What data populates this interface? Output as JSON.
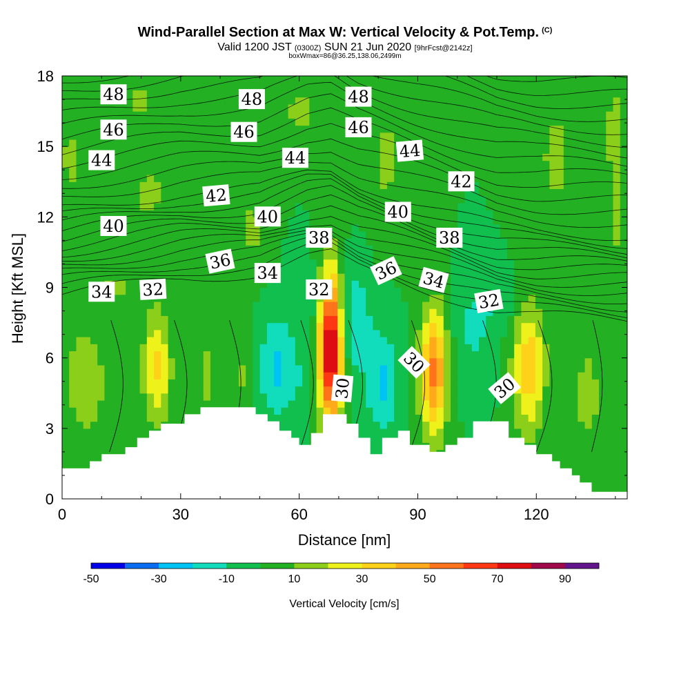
{
  "title": {
    "main": "Wind-Parallel Section at Max W: Vertical Velocity & Pot.Temp.",
    "mark": "(C)",
    "valid_prefix": "Valid 1200 JST",
    "valid_z": "(0300Z)",
    "valid_suffix": "SUN 21 Jun 2020",
    "forecast": "[9hrFcst@2142z]",
    "box_line": "boxWmax=86@36.25,138.06,2499m"
  },
  "chart_data": {
    "type": "heatmap",
    "xlabel": "Distance [nm]",
    "ylabel": "Height [Kft MSL]",
    "xlim": [
      0,
      143
    ],
    "ylim": [
      0,
      18
    ],
    "xticks": [
      0,
      30,
      60,
      90,
      120
    ],
    "yticks": [
      0,
      3,
      6,
      9,
      12,
      15,
      18
    ],
    "terrain_kft": [
      [
        0,
        1.3
      ],
      [
        7,
        1.3
      ],
      [
        7,
        1.6
      ],
      [
        10,
        1.6
      ],
      [
        10,
        1.9
      ],
      [
        16,
        1.9
      ],
      [
        16,
        2.2
      ],
      [
        19,
        2.2
      ],
      [
        19,
        2.6
      ],
      [
        22,
        2.6
      ],
      [
        22,
        2.9
      ],
      [
        25,
        2.9
      ],
      [
        25,
        3.2
      ],
      [
        31,
        3.2
      ],
      [
        31,
        3.6
      ],
      [
        35,
        3.6
      ],
      [
        35,
        3.9
      ],
      [
        49,
        3.9
      ],
      [
        49,
        3.6
      ],
      [
        52,
        3.6
      ],
      [
        52,
        3.3
      ],
      [
        55,
        3.3
      ],
      [
        55,
        2.9
      ],
      [
        58,
        2.9
      ],
      [
        58,
        2.6
      ],
      [
        60,
        2.6
      ],
      [
        60,
        2.3
      ],
      [
        63,
        2.3
      ],
      [
        63,
        2.8
      ],
      [
        66,
        2.8
      ],
      [
        66,
        3.6
      ],
      [
        72,
        3.6
      ],
      [
        72,
        3.2
      ],
      [
        75,
        3.2
      ],
      [
        75,
        2.6
      ],
      [
        78,
        2.6
      ],
      [
        78,
        1.9
      ],
      [
        81,
        1.9
      ],
      [
        81,
        2.6
      ],
      [
        85,
        2.6
      ],
      [
        85,
        2.9
      ],
      [
        88,
        2.9
      ],
      [
        88,
        2.3
      ],
      [
        93,
        2.3
      ],
      [
        93,
        2.0
      ],
      [
        97,
        2.0
      ],
      [
        97,
        2.3
      ],
      [
        100,
        2.3
      ],
      [
        100,
        2.6
      ],
      [
        104,
        2.6
      ],
      [
        104,
        3.3
      ],
      [
        113,
        3.3
      ],
      [
        113,
        2.6
      ],
      [
        117,
        2.6
      ],
      [
        117,
        2.3
      ],
      [
        120,
        2.3
      ],
      [
        120,
        1.9
      ],
      [
        124,
        1.9
      ],
      [
        124,
        1.6
      ],
      [
        126,
        1.6
      ],
      [
        126,
        1.3
      ],
      [
        129,
        1.3
      ],
      [
        129,
        1.0
      ],
      [
        131,
        1.0
      ],
      [
        131,
        0.7
      ],
      [
        134,
        0.7
      ],
      [
        134,
        0.3
      ],
      [
        143,
        0.3
      ]
    ],
    "background_w_cms": 0,
    "w_features": [
      {
        "x": 6,
        "z": 5.0,
        "rx": 5,
        "rz": 2.3,
        "w": 20
      },
      {
        "x": 24,
        "z": 5.6,
        "rx": 3.5,
        "rz": 2.4,
        "w": 32
      },
      {
        "x": 37,
        "z": 5.3,
        "rx": 2,
        "rz": 1.6,
        "w": 15
      },
      {
        "x": 46,
        "z": 5.3,
        "rx": 1.3,
        "rz": 1.5,
        "w": 12
      },
      {
        "x": 54,
        "z": 5.6,
        "rx": 4,
        "rz": 2.2,
        "w": -22
      },
      {
        "x": 60,
        "z": 5.0,
        "rx": 3.5,
        "rz": 2.5,
        "w": -8
      },
      {
        "x": 68,
        "z": 6.4,
        "rx": 3,
        "rz": 3.2,
        "w": 86
      },
      {
        "x": 74,
        "z": 7.6,
        "rx": 4,
        "rz": 2.2,
        "w": -20
      },
      {
        "x": 81,
        "z": 5.0,
        "rx": 4,
        "rz": 2.2,
        "w": -22
      },
      {
        "x": 94,
        "z": 5.4,
        "rx": 3.5,
        "rz": 2.7,
        "w": 52
      },
      {
        "x": 104,
        "z": 6.6,
        "rx": 5,
        "rz": 2.0,
        "w": -10
      },
      {
        "x": 118,
        "z": 5.6,
        "rx": 4,
        "rz": 2.8,
        "w": 38
      },
      {
        "x": 133,
        "z": 4.4,
        "rx": 3,
        "rz": 2.0,
        "w": 18
      },
      {
        "x": 109,
        "z": 8.3,
        "rx": 8,
        "rz": 1.3,
        "w": -8
      },
      {
        "x": 62,
        "z": 8.5,
        "rx": 4,
        "rz": 1.6,
        "w": -8
      },
      {
        "x": 14,
        "z": 9.0,
        "rx": 7,
        "rz": 0.8,
        "w": 12
      },
      {
        "x": 2,
        "z": 14.5,
        "rx": 3,
        "rz": 2.5,
        "w": 12
      },
      {
        "x": 22,
        "z": 13.0,
        "rx": 6,
        "rz": 1.8,
        "w": 12
      },
      {
        "x": 20,
        "z": 17.0,
        "rx": 5,
        "rz": 1.0,
        "w": 12
      },
      {
        "x": 60,
        "z": 16.5,
        "rx": 6,
        "rz": 1.5,
        "w": 12
      },
      {
        "x": 48,
        "z": 11.5,
        "rx": 4,
        "rz": 2.0,
        "w": 12
      },
      {
        "x": 82,
        "z": 14.5,
        "rx": 5,
        "rz": 3.0,
        "w": 12
      },
      {
        "x": 125,
        "z": 14.5,
        "rx": 6,
        "rz": 3.5,
        "w": 12
      },
      {
        "x": 140,
        "z": 16.0,
        "rx": 3,
        "rz": 2.0,
        "w": 12
      },
      {
        "x": 140,
        "z": 12.0,
        "rx": 3,
        "rz": 3.0,
        "w": 12
      }
    ],
    "theta_levels": [
      30,
      32,
      34,
      36,
      38,
      40,
      42,
      44,
      46,
      48
    ],
    "contour_labels": [
      {
        "text": "48",
        "x": 13,
        "z": 17.2,
        "angle": 0
      },
      {
        "text": "48",
        "x": 48,
        "z": 17.0,
        "angle": 0
      },
      {
        "text": "48",
        "x": 75,
        "z": 17.1,
        "angle": 0
      },
      {
        "text": "46",
        "x": 13,
        "z": 15.7,
        "angle": 0
      },
      {
        "text": "46",
        "x": 46,
        "z": 15.6,
        "angle": 0
      },
      {
        "text": "46",
        "x": 75,
        "z": 15.8,
        "angle": 0
      },
      {
        "text": "44",
        "x": 10,
        "z": 14.4,
        "angle": 0
      },
      {
        "text": "44",
        "x": 59,
        "z": 14.5,
        "angle": 0
      },
      {
        "text": "44",
        "x": 88,
        "z": 14.8,
        "angle": -5
      },
      {
        "text": "42",
        "x": 39,
        "z": 12.9,
        "angle": -5
      },
      {
        "text": "42",
        "x": 101,
        "z": 13.5,
        "angle": 0
      },
      {
        "text": "40",
        "x": 13,
        "z": 11.6,
        "angle": 0
      },
      {
        "text": "40",
        "x": 52,
        "z": 12.0,
        "angle": 0
      },
      {
        "text": "40",
        "x": 85,
        "z": 12.2,
        "angle": 0
      },
      {
        "text": "38",
        "x": 65,
        "z": 11.1,
        "angle": 0
      },
      {
        "text": "38",
        "x": 98,
        "z": 11.1,
        "angle": 0
      },
      {
        "text": "36",
        "x": 40,
        "z": 10.1,
        "angle": -12
      },
      {
        "text": "36",
        "x": 82,
        "z": 9.7,
        "angle": -25
      },
      {
        "text": "34",
        "x": 10,
        "z": 8.8,
        "angle": 0
      },
      {
        "text": "34",
        "x": 52,
        "z": 9.6,
        "angle": 0
      },
      {
        "text": "34",
        "x": 94,
        "z": 9.3,
        "angle": 15
      },
      {
        "text": "32",
        "x": 23,
        "z": 8.9,
        "angle": -3
      },
      {
        "text": "32",
        "x": 65,
        "z": 8.9,
        "angle": 0
      },
      {
        "text": "32",
        "x": 108,
        "z": 8.4,
        "angle": -10
      },
      {
        "text": "30",
        "x": 71,
        "z": 4.7,
        "angle": -85
      },
      {
        "text": "30",
        "x": 89,
        "z": 5.8,
        "angle": 45
      },
      {
        "text": "30",
        "x": 112,
        "z": 4.7,
        "angle": -40
      }
    ],
    "colorbar": {
      "title": "Vertical Velocity [cm/s]",
      "min": -50,
      "max": 100,
      "step": 10,
      "ticks": [
        "-50",
        "-30",
        "-10",
        "10",
        "30",
        "50",
        "70",
        "90"
      ],
      "colors": [
        "#0000e8",
        "#0a6cf0",
        "#00c3f5",
        "#11dcbc",
        "#11bf4f",
        "#23b023",
        "#8ccf1a",
        "#eef21a",
        "#ffd21a",
        "#ffaa1a",
        "#ff731a",
        "#ff3814",
        "#dd0d12",
        "#a0084a",
        "#62148c"
      ]
    }
  }
}
